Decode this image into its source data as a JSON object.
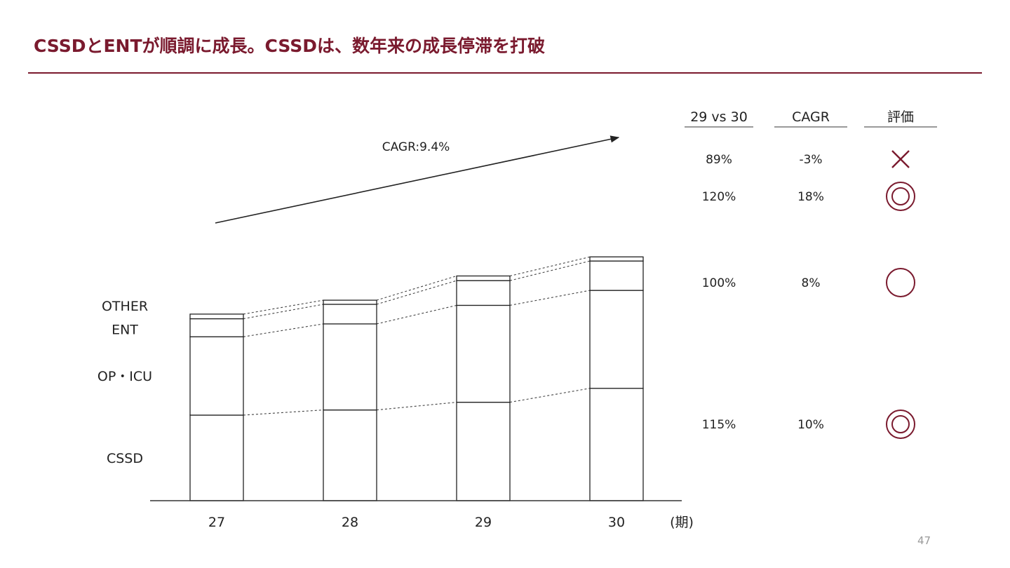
{
  "title": "CSSDとENTが順調に成長。CSSDは、数年来の成長停滞を打破",
  "page_number": "47",
  "accent_color": "#7a1a2e",
  "chart_data": {
    "type": "bar",
    "stacked": true,
    "categories": [
      "27",
      "28",
      "29",
      "30"
    ],
    "x_unit_label": "(期)",
    "series": [
      {
        "name": "CSSD",
        "values": [
          166,
          176,
          191,
          218
        ]
      },
      {
        "name": "OP・ICU",
        "values": [
          152,
          167,
          188,
          190
        ]
      },
      {
        "name": "ENT",
        "values": [
          35,
          38,
          48,
          57
        ]
      },
      {
        "name": "OTHER",
        "values": [
          9,
          8,
          9,
          8
        ]
      }
    ],
    "annotation": "CAGR:9.4%",
    "legend_position": "left",
    "gridlines": false
  },
  "metrics_table": {
    "headers": [
      "29 vs 30",
      "CAGR",
      "評価"
    ],
    "rows": [
      {
        "series": "OTHER",
        "yoy": "89%",
        "cagr": "-3%",
        "rating": "cross-mark"
      },
      {
        "series": "ENT",
        "yoy": "120%",
        "cagr": "18%",
        "rating": "double-circle"
      },
      {
        "series": "OP・ICU",
        "yoy": "100%",
        "cagr": "8%",
        "rating": "circle"
      },
      {
        "series": "CSSD",
        "yoy": "115%",
        "cagr": "10%",
        "rating": "double-circle"
      }
    ]
  }
}
